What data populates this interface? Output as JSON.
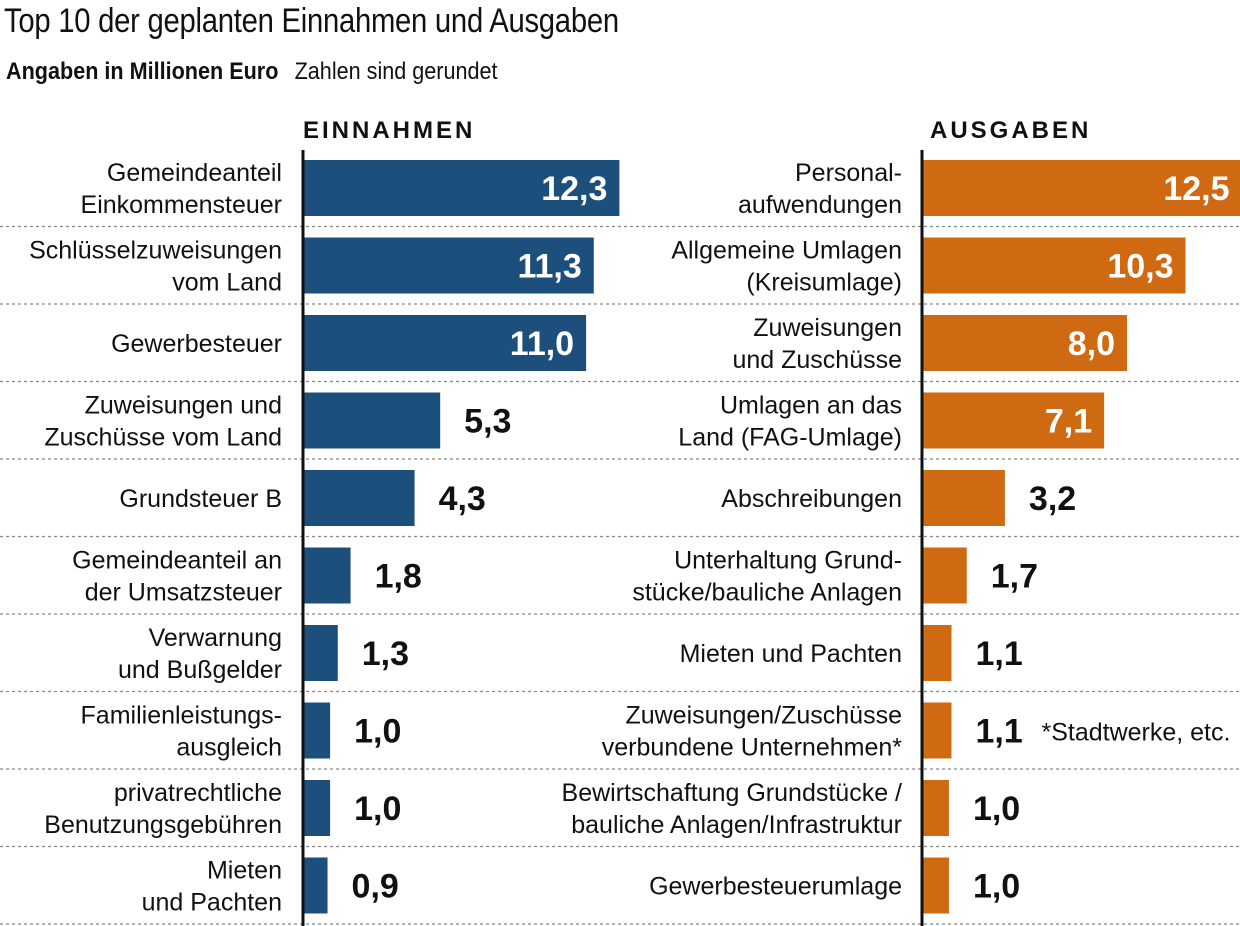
{
  "title": "Top 10 der geplanten Einnahmen und Ausgaben",
  "subtitle_bold": "Angaben in Millionen Euro",
  "subtitle_note": "Zahlen sind gerundet",
  "colors": {
    "einnahmen": "#1d4f7c",
    "ausgaben": "#cf6a13"
  },
  "footnote": "*Stadtwerke, etc.",
  "chart_data": [
    {
      "type": "bar",
      "title": "EINNAHMEN",
      "categories": [
        "Gemeindeanteil\nEinkommensteuer",
        "Schlüsselzuweisungen\nvom Land",
        "Gewerbesteuer",
        "Zuweisungen und\nZuschüsse vom Land",
        "Grundsteuer B",
        "Gemeindeanteil an\nder Umsatzsteuer",
        "Verwarnung\nund Bußgelder",
        "Familienleistungs-\nausgleich",
        "privatrechtliche\nBenutzungsgebühren",
        "Mieten\nund Pachten"
      ],
      "values": [
        12.3,
        11.3,
        11.0,
        5.3,
        4.3,
        1.8,
        1.3,
        1.0,
        1.0,
        0.9
      ],
      "labels": [
        "12,3",
        "11,3",
        "11,0",
        "5,3",
        "4,3",
        "1,8",
        "1,3",
        "1,0",
        "1,0",
        "0,9"
      ]
    },
    {
      "type": "bar",
      "title": "AUSGABEN",
      "categories": [
        "Personal-\naufwendungen",
        "Allgemeine Umlagen\n(Kreisumlage)",
        "Zuweisungen\nund Zuschüsse",
        "Umlagen an das\nLand (FAG-Umlage)",
        "Abschreibungen",
        "Unterhaltung Grund-\nstücke/bauliche Anlagen",
        "Mieten und Pachten",
        "Zuweisungen/Zuschüsse\nverbundene Unternehmen*",
        "Bewirtschaftung Grundstücke /\nbauliche Anlagen/Infrastruktur",
        "Gewerbesteuerumlage"
      ],
      "values": [
        12.5,
        10.3,
        8.0,
        7.1,
        3.2,
        1.7,
        1.1,
        1.1,
        1.0,
        1.0
      ],
      "labels": [
        "12,5",
        "10,3",
        "8,0",
        "7,1",
        "3,2",
        "1,7",
        "1,1",
        "1,1",
        "1,0",
        "1,0"
      ]
    }
  ]
}
